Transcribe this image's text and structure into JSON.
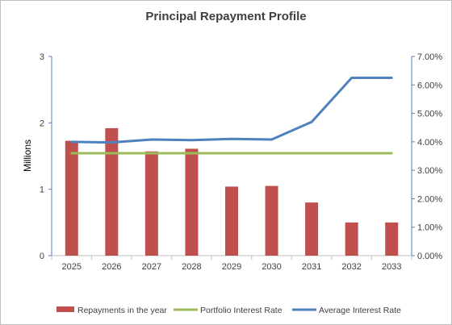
{
  "chart_data": {
    "type": "bar",
    "title": "Principal Repayment Profile",
    "categories": [
      "2025",
      "2026",
      "2027",
      "2028",
      "2029",
      "2030",
      "2031",
      "2032",
      "2033"
    ],
    "ylabel": "Millions",
    "ylim": [
      0,
      3
    ],
    "y_ticks": [
      "0",
      "1",
      "2",
      "3"
    ],
    "y2lim": [
      0,
      0.07
    ],
    "y2_ticks": [
      "0.00%",
      "1.00%",
      "2.00%",
      "3.00%",
      "4.00%",
      "5.00%",
      "6.00%",
      "7.00%"
    ],
    "grid": false,
    "legend_position": "bottom",
    "series": [
      {
        "name": "Repayments in the year",
        "type": "bar",
        "axis": "left",
        "color": "#c0504d",
        "values": [
          1.73,
          1.92,
          1.57,
          1.61,
          1.04,
          1.05,
          0.8,
          0.5,
          0.5
        ]
      },
      {
        "name": "Portfolio Interest Rate",
        "type": "line",
        "axis": "right",
        "color": "#9bbb59",
        "values": [
          0.036,
          0.036,
          0.036,
          0.036,
          0.036,
          0.036,
          0.036,
          0.036,
          0.036
        ]
      },
      {
        "name": "Average Interest Rate",
        "type": "line",
        "axis": "right",
        "color": "#4f81bd",
        "values": [
          0.04,
          0.0398,
          0.0408,
          0.0406,
          0.041,
          0.0408,
          0.047,
          0.0625,
          0.0625
        ]
      }
    ]
  }
}
